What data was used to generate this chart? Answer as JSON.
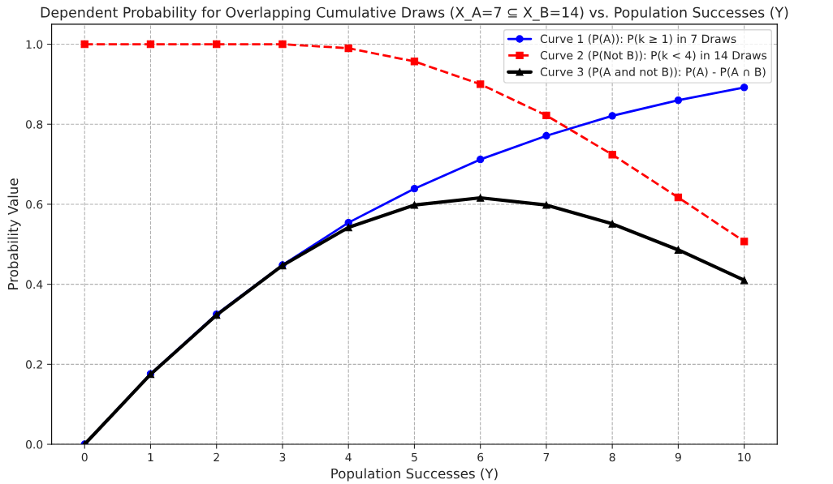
{
  "chart_data": {
    "type": "line",
    "title": "Dependent Probability for Overlapping Cumulative Draws (X_A=7 ⊆ X_B=14) vs. Population Successes (Y)",
    "xlabel": "Population Successes (Y)",
    "ylabel": "Probability Value",
    "x": [
      0,
      1,
      2,
      3,
      4,
      5,
      6,
      7,
      8,
      9,
      10
    ],
    "series": [
      {
        "name": "Curve 1 (P(A)): P(k ≥ 1) in 7 Draws",
        "color": "#0000ff",
        "marker": "circle",
        "line_style": "solid",
        "values": [
          0,
          0.176,
          0.325,
          0.448,
          0.554,
          0.639,
          0.712,
          0.771,
          0.821,
          0.86,
          0.892
        ]
      },
      {
        "name": "Curve 2 (P(Not B)): P(k < 4) in 14 Draws",
        "color": "#ff0000",
        "marker": "square",
        "line_style": "dashed",
        "values": [
          1.0,
          1.0,
          1.0,
          1.0,
          0.99,
          0.957,
          0.9,
          0.822,
          0.724,
          0.617,
          0.507
        ]
      },
      {
        "name": "Curve 3 (P(A and not B)): P(A) - P(A ∩ B)",
        "color": "#000000",
        "marker": "triangle",
        "line_style": "solid",
        "values": [
          0,
          0.175,
          0.323,
          0.447,
          0.542,
          0.598,
          0.616,
          0.598,
          0.551,
          0.486,
          0.41
        ]
      }
    ],
    "xlim": [
      -0.5,
      10.5
    ],
    "ylim": [
      0,
      1.05
    ],
    "xticks": [
      0,
      1,
      2,
      3,
      4,
      5,
      6,
      7,
      8,
      9,
      10
    ],
    "yticks": [
      {
        "value": 0,
        "label": "0.0"
      },
      {
        "value": 0.2,
        "label": "0.2"
      },
      {
        "value": 0.4,
        "label": "0.4"
      },
      {
        "value": 0.6,
        "label": "0.6"
      },
      {
        "value": 0.8,
        "label": "0.8"
      },
      {
        "value": 1.0,
        "label": "1.0"
      }
    ],
    "grid": true,
    "legend": "top right"
  }
}
